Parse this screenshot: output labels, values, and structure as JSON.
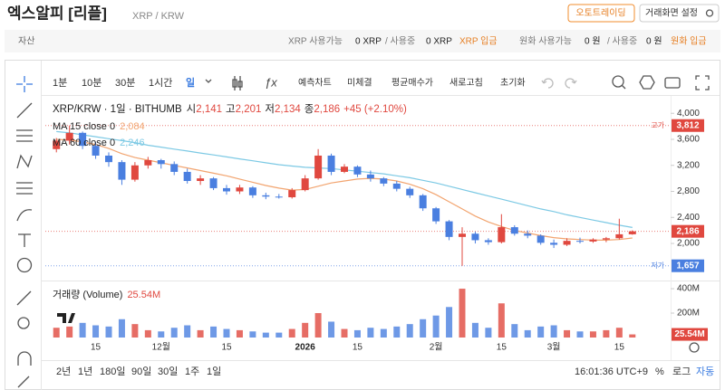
{
  "header": {
    "title": "엑스알피 [리플]",
    "pair": "XRP / KRW",
    "buttons": [
      "오토트레이딩",
      "거래화면 설정"
    ]
  },
  "assets": {
    "label": "자산",
    "xrp_available_label": "XRP 사용가능",
    "xrp_available": "0 XRP",
    "xrp_in_use_label": "/ 사용중",
    "xrp_in_use": "0 XRP",
    "xrp_deposit": "XRP 입금",
    "krw_available_label": "원화 사용가능",
    "krw_available": "0 원",
    "krw_in_use_label": "/ 사용중",
    "krw_in_use": "0 원",
    "krw_deposit": "원화 입금"
  },
  "toolbar": {
    "intervals": [
      "1분",
      "10분",
      "30분",
      "1시간",
      "일"
    ],
    "actions": [
      "예측차트",
      "미체결",
      "평균매수가",
      "새로고침",
      "초기화"
    ]
  },
  "footer": {
    "ranges": [
      "2년",
      "1년",
      "180일",
      "90일",
      "30일",
      "1주",
      "1일"
    ],
    "time": "16:01:36 UTC+9",
    "options": [
      "%",
      "로그",
      "자동"
    ]
  },
  "chart_data": {
    "type": "candlestick",
    "title": "XRP/KRW · 1일 · BITHUMB",
    "ohlc_labels": {
      "open": "시",
      "open_value": "2,141",
      "high": "고",
      "high_value": "2,201",
      "low": "저",
      "low_value": "2,134",
      "close": "종",
      "close_value": "2,186",
      "change": "+45 (+2.10%)"
    },
    "categories": [
      null,
      null,
      null,
      "15",
      null,
      null,
      null,
      null,
      "12월",
      null,
      null,
      null,
      null,
      "15",
      null,
      null,
      null,
      null,
      null,
      "2026",
      null,
      null,
      null,
      "15",
      null,
      null,
      null,
      null,
      null,
      "2월",
      null,
      null,
      null,
      null,
      "15",
      null,
      null,
      null,
      "3월",
      null,
      null,
      null,
      null,
      "15",
      null
    ],
    "open": [
      3450,
      3580,
      3700,
      3500,
      3350,
      3250,
      2980,
      3200,
      3280,
      3220,
      3100,
      2960,
      3000,
      2850,
      2800,
      2860,
      2740,
      2720,
      2710,
      2820,
      3000,
      3350,
      3100,
      3180,
      3060,
      3000,
      2920,
      2840,
      2740,
      2540,
      2340,
      2100,
      2150,
      2050,
      2020,
      2250,
      2150,
      2120,
      2010,
      1980,
      2040,
      2030,
      2060,
      2080,
      2141
    ],
    "high": [
      3620,
      3812,
      3720,
      3560,
      3400,
      3280,
      3250,
      3330,
      3300,
      3260,
      3150,
      3050,
      3020,
      2900,
      2900,
      2880,
      2780,
      2760,
      2850,
      3050,
      3450,
      3380,
      3220,
      3200,
      3120,
      3020,
      2960,
      2870,
      2760,
      2560,
      2360,
      2250,
      2180,
      2080,
      2450,
      2280,
      2200,
      2140,
      2060,
      2080,
      2090,
      2080,
      2100,
      2380,
      2201
    ],
    "low": [
      3400,
      3520,
      3450,
      3300,
      3180,
      2900,
      2950,
      3150,
      3150,
      3050,
      2920,
      2900,
      2820,
      2750,
      2760,
      2700,
      2680,
      2690,
      2690,
      2800,
      2980,
      3050,
      3080,
      3020,
      2950,
      2880,
      2800,
      2700,
      2500,
      2300,
      2050,
      1657,
      2000,
      1980,
      2000,
      2120,
      2080,
      1980,
      1930,
      1960,
      2000,
      2010,
      2020,
      2060,
      2134
    ],
    "close": [
      3580,
      3700,
      3500,
      3350,
      3250,
      2980,
      3200,
      3280,
      3220,
      3100,
      2960,
      3000,
      2850,
      2800,
      2860,
      2740,
      2720,
      2710,
      2820,
      3000,
      3350,
      3100,
      3180,
      3060,
      3000,
      2920,
      2840,
      2740,
      2540,
      2340,
      2100,
      2150,
      2050,
      2020,
      2250,
      2150,
      2120,
      2010,
      1980,
      2040,
      2030,
      2060,
      2080,
      2141,
      2186
    ],
    "up_color": "#e0483f",
    "down_color": "#4a7fe0",
    "lines": [
      {
        "name": "MA 15 close 0",
        "last_label": "2,084",
        "color": "#f2a46f",
        "values": [
          3600,
          3590,
          3560,
          3520,
          3460,
          3380,
          3320,
          3280,
          3240,
          3200,
          3160,
          3120,
          3080,
          3040,
          2990,
          2940,
          2890,
          2850,
          2820,
          2830,
          2880,
          2930,
          2960,
          2990,
          3000,
          2990,
          2960,
          2910,
          2840,
          2750,
          2640,
          2530,
          2420,
          2330,
          2260,
          2200,
          2160,
          2120,
          2090,
          2070,
          2060,
          2050,
          2050,
          2060,
          2084
        ]
      },
      {
        "name": "MA 60 close 0",
        "last_label": "2,246",
        "color": "#7cc9e4",
        "values": [
          3720,
          3700,
          3670,
          3640,
          3610,
          3580,
          3550,
          3510,
          3480,
          3450,
          3420,
          3390,
          3360,
          3330,
          3300,
          3270,
          3240,
          3210,
          3190,
          3170,
          3160,
          3150,
          3130,
          3110,
          3090,
          3070,
          3040,
          3010,
          2970,
          2930,
          2880,
          2830,
          2780,
          2730,
          2680,
          2630,
          2580,
          2530,
          2490,
          2440,
          2400,
          2360,
          2320,
          2280,
          2246
        ]
      }
    ],
    "ylim": [
      1500,
      4170
    ],
    "yticks": [
      {
        "value": 2000,
        "label": "2,000"
      },
      {
        "value": 2400,
        "label": "2,400"
      },
      {
        "value": 2800,
        "label": "2,800"
      },
      {
        "value": 3200,
        "label": "3,200"
      },
      {
        "value": 3600,
        "label": "3,600"
      },
      {
        "value": 4000,
        "label": "4,000"
      }
    ],
    "markers": [
      {
        "label": "고가",
        "value": 3812,
        "value_label": "3,812",
        "color": "#e0483f"
      },
      {
        "value": 2186,
        "value_label": "2,186",
        "color": "#e0483f"
      },
      {
        "label": "저가",
        "value": 1657,
        "value_label": "1,657",
        "color": "#4a7fe0"
      }
    ],
    "volume": {
      "title": "거래량 (Volume)",
      "last_label": "25.54M",
      "values": [
        80000000,
        90000000,
        120000000,
        100000000,
        90000000,
        150000000,
        110000000,
        60000000,
        50000000,
        80000000,
        100000000,
        60000000,
        90000000,
        70000000,
        60000000,
        50000000,
        40000000,
        40000000,
        70000000,
        120000000,
        200000000,
        130000000,
        70000000,
        60000000,
        80000000,
        70000000,
        90000000,
        110000000,
        150000000,
        180000000,
        250000000,
        400000000,
        120000000,
        80000000,
        280000000,
        110000000,
        60000000,
        90000000,
        100000000,
        60000000,
        50000000,
        50000000,
        60000000,
        80000000,
        25540000
      ],
      "ylim": [
        0,
        430000000
      ],
      "yticks": [
        {
          "value": 200000000,
          "label": "200M"
        },
        {
          "value": 400000000,
          "label": "400M"
        }
      ]
    }
  }
}
